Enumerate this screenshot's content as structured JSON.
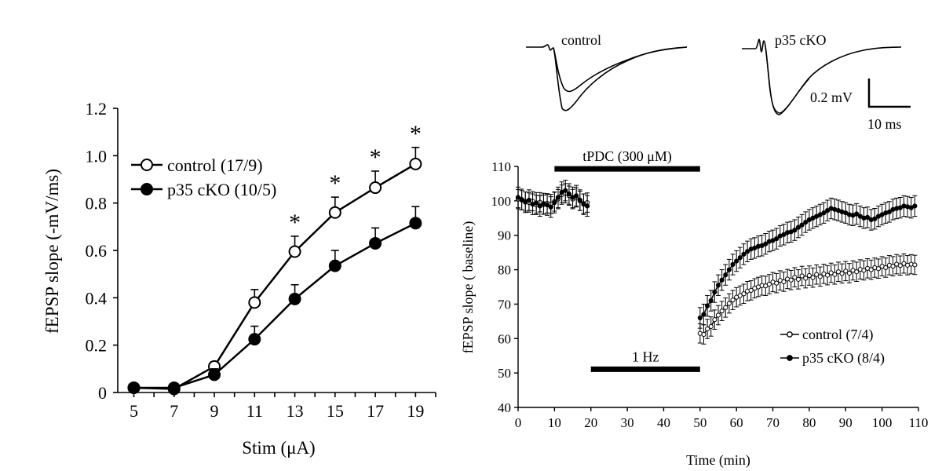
{
  "chart_data": [
    {
      "type": "line",
      "xlabel": "Stim (μA)",
      "ylabel": "fEPSP slope (-mV/ms)",
      "xlim": [
        4.2,
        20
      ],
      "ylim": [
        0,
        1.2
      ],
      "x_ticks": [
        "5",
        "7",
        "9",
        "11",
        "13",
        "15",
        "17",
        "19"
      ],
      "y_ticks": [
        "0",
        "0.2",
        "0.4",
        "0.6",
        "0.8",
        "1.0",
        "1.2"
      ],
      "x": [
        5,
        7,
        9,
        11,
        13,
        15,
        17,
        19
      ],
      "series": [
        {
          "name": "control (17/9)",
          "marker": "open-circle",
          "values": [
            0.02,
            0.015,
            0.11,
            0.38,
            0.595,
            0.76,
            0.865,
            0.965
          ],
          "errors": [
            0.01,
            0.01,
            0.02,
            0.055,
            0.065,
            0.065,
            0.07,
            0.07
          ]
        },
        {
          "name": "p35 cKO (10/5)",
          "marker": "filled-circle",
          "values": [
            0.02,
            0.02,
            0.075,
            0.225,
            0.395,
            0.535,
            0.63,
            0.715
          ],
          "errors": [
            0.01,
            0.01,
            0.025,
            0.055,
            0.06,
            0.065,
            0.065,
            0.07
          ]
        }
      ],
      "significance": {
        "label": "*",
        "at_x": [
          13,
          15,
          17,
          19
        ]
      },
      "legend_placement": "top-left",
      "grid": false
    },
    {
      "type": "line",
      "xlabel": "Time (min)",
      "ylabel": "fEPSP slope ( baseline)",
      "xlim": [
        0,
        110
      ],
      "ylim": [
        40,
        110
      ],
      "x_ticks": [
        "0",
        "10",
        "20",
        "30",
        "40",
        "50",
        "60",
        "70",
        "80",
        "90",
        "100",
        "110"
      ],
      "y_ticks": [
        "40",
        "50",
        "60",
        "70",
        "80",
        "90",
        "100",
        "110"
      ],
      "bars": [
        {
          "label": "tPDC (300 μM)",
          "from": 10,
          "to": 50,
          "y": 109.3
        },
        {
          "label": "1 Hz",
          "from": 20,
          "to": 50,
          "y": 51.1
        }
      ],
      "legend_placement": "bottom-right",
      "grid": false,
      "series": [
        {
          "name": "control (7/4)",
          "marker": "open-circle",
          "x": [
            0,
            1,
            2,
            3,
            4,
            5,
            6,
            7,
            8,
            9,
            10,
            11,
            12,
            13,
            14,
            15,
            16,
            17,
            18,
            19,
            50,
            51,
            52,
            53,
            54,
            55,
            56,
            57,
            58,
            59,
            60,
            61,
            62,
            63,
            64,
            65,
            66,
            67,
            68,
            69,
            70,
            71,
            72,
            73,
            74,
            75,
            76,
            77,
            78,
            79,
            80,
            81,
            82,
            83,
            84,
            85,
            86,
            87,
            88,
            89,
            90,
            91,
            92,
            93,
            94,
            95,
            96,
            97,
            98,
            99,
            100,
            101,
            102,
            103,
            104,
            105,
            106,
            107,
            108,
            109
          ],
          "values": [
            100.5,
            100.2,
            99.8,
            99.5,
            99.9,
            98.8,
            99.6,
            98.9,
            99.3,
            99.1,
            99.8,
            100.5,
            101.8,
            102.2,
            101.5,
            100.5,
            101.0,
            100.0,
            99.2,
            99.5,
            61.5,
            61.2,
            62.8,
            63.5,
            65.5,
            66.8,
            68.0,
            69.0,
            70.2,
            71.2,
            72.0,
            72.5,
            73.0,
            73.8,
            74.0,
            74.6,
            75.0,
            75.4,
            75.3,
            75.8,
            76.4,
            76.1,
            76.9,
            76.5,
            77.3,
            77.0,
            77.8,
            77.2,
            78.2,
            77.5,
            78.3,
            77.7,
            78.6,
            78.0,
            78.8,
            78.4,
            79.1,
            78.6,
            79.4,
            78.9,
            79.6,
            79.0,
            79.8,
            79.4,
            80.1,
            79.8,
            80.4,
            80.0,
            80.6,
            80.3,
            81.0,
            80.6,
            81.3,
            81.0,
            81.6,
            81.2,
            81.8,
            81.3,
            81.6,
            81.4
          ],
          "error": 2.8
        },
        {
          "name": "p35 cKO (8/4)",
          "marker": "filled-circle",
          "x": [
            0,
            1,
            2,
            3,
            4,
            5,
            6,
            7,
            8,
            9,
            10,
            11,
            12,
            13,
            14,
            15,
            16,
            17,
            18,
            19,
            50,
            51,
            52,
            53,
            54,
            55,
            56,
            57,
            58,
            59,
            60,
            61,
            62,
            63,
            64,
            65,
            66,
            67,
            68,
            69,
            70,
            71,
            72,
            73,
            74,
            75,
            76,
            77,
            78,
            79,
            80,
            81,
            82,
            83,
            84,
            85,
            86,
            87,
            88,
            89,
            90,
            91,
            92,
            93,
            94,
            95,
            96,
            97,
            98,
            99,
            100,
            101,
            102,
            103,
            104,
            105,
            106,
            107,
            108,
            109
          ],
          "values": [
            101.0,
            100.4,
            99.6,
            100.2,
            99.0,
            99.4,
            98.5,
            99.2,
            98.8,
            98.2,
            99.5,
            101.0,
            102.5,
            103.0,
            102.0,
            101.0,
            101.5,
            100.2,
            99.0,
            98.5,
            66.0,
            67.0,
            69.5,
            71.0,
            73.5,
            75.5,
            77.0,
            78.5,
            80.0,
            81.5,
            82.5,
            83.5,
            84.5,
            85.3,
            86.0,
            86.3,
            86.8,
            87.0,
            87.5,
            88.2,
            88.5,
            89.0,
            89.8,
            90.2,
            90.8,
            91.0,
            91.5,
            92.3,
            93.0,
            93.8,
            94.5,
            95.0,
            95.5,
            96.0,
            96.5,
            97.2,
            97.8,
            97.5,
            97.2,
            96.8,
            96.5,
            96.0,
            95.8,
            96.2,
            95.5,
            95.0,
            95.2,
            94.5,
            94.8,
            95.5,
            96.0,
            96.5,
            96.8,
            97.5,
            97.8,
            98.0,
            98.5,
            98.3,
            98.0,
            98.5
          ],
          "error": 3.0
        }
      ]
    }
  ],
  "traces": {
    "control_label": "control",
    "cko_label": "p35 cKO",
    "scale_y_label": "0.2 mV",
    "scale_x_label": "10 ms"
  }
}
